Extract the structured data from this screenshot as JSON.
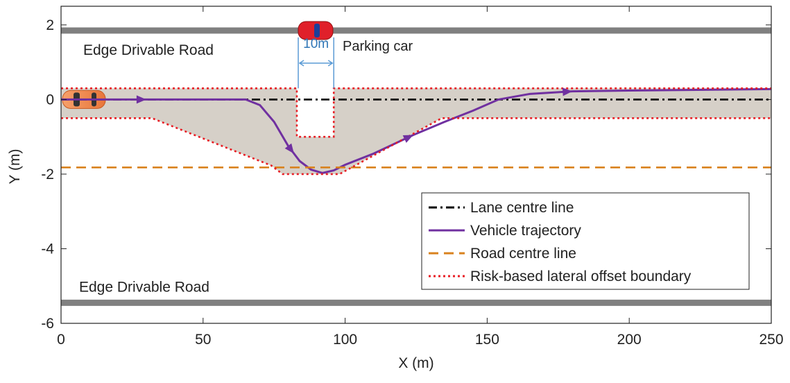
{
  "chart_data": {
    "type": "line",
    "x_label": "X (m)",
    "y_label": "Y (m)",
    "xlim": [
      0,
      250
    ],
    "xticks": [
      0,
      50,
      100,
      150,
      200,
      250
    ],
    "ylim": [
      -6,
      2.5
    ],
    "yticks": [
      -6,
      -4,
      -2,
      0,
      2
    ],
    "grid": false,
    "legend": "lower right",
    "series": [
      {
        "name": "Lane centre line",
        "color": "#000000",
        "style": "dashdot",
        "x": [
          0,
          250
        ],
        "values": [
          0,
          0
        ]
      },
      {
        "name": "Vehicle trajectory",
        "color": "#7030a0",
        "style": "solid",
        "x": [
          0,
          30,
          65,
          70,
          75,
          80,
          82,
          84,
          88,
          92,
          96,
          100,
          110,
          124,
          135,
          145,
          154,
          165,
          180,
          200,
          250
        ],
        "values": [
          0,
          0,
          0,
          -0.15,
          -0.6,
          -1.25,
          -1.45,
          -1.65,
          -1.88,
          -1.97,
          -1.9,
          -1.75,
          -1.45,
          -0.95,
          -0.6,
          -0.3,
          0,
          0.15,
          0.22,
          0.24,
          0.28
        ]
      },
      {
        "name": "Road centre line",
        "color": "#d9821e",
        "style": "dashed",
        "x": [
          0,
          250
        ],
        "values": [
          -1.82,
          -1.82
        ]
      },
      {
        "name": "Risk-based lateral offset boundary",
        "color": "#e81e25",
        "style": "dotted",
        "x": [
          0,
          83,
          83,
          96,
          96,
          250,
          null,
          0,
          32,
          74,
          78,
          98,
          134,
          250
        ],
        "values": [
          0.3,
          0.3,
          -1,
          -1,
          0.3,
          0.3,
          null,
          -0.5,
          -0.5,
          -1.77,
          -2,
          -2,
          -0.5,
          -0.5
        ]
      }
    ],
    "edge_roads": {
      "color": "#808080",
      "label": "Edge Drivable Road",
      "y": [
        1.85,
        -5.45
      ]
    },
    "annotations": {
      "parking_car": "Parking car",
      "gap_label": "10m",
      "gap_x": [
        83.5,
        96
      ]
    }
  }
}
